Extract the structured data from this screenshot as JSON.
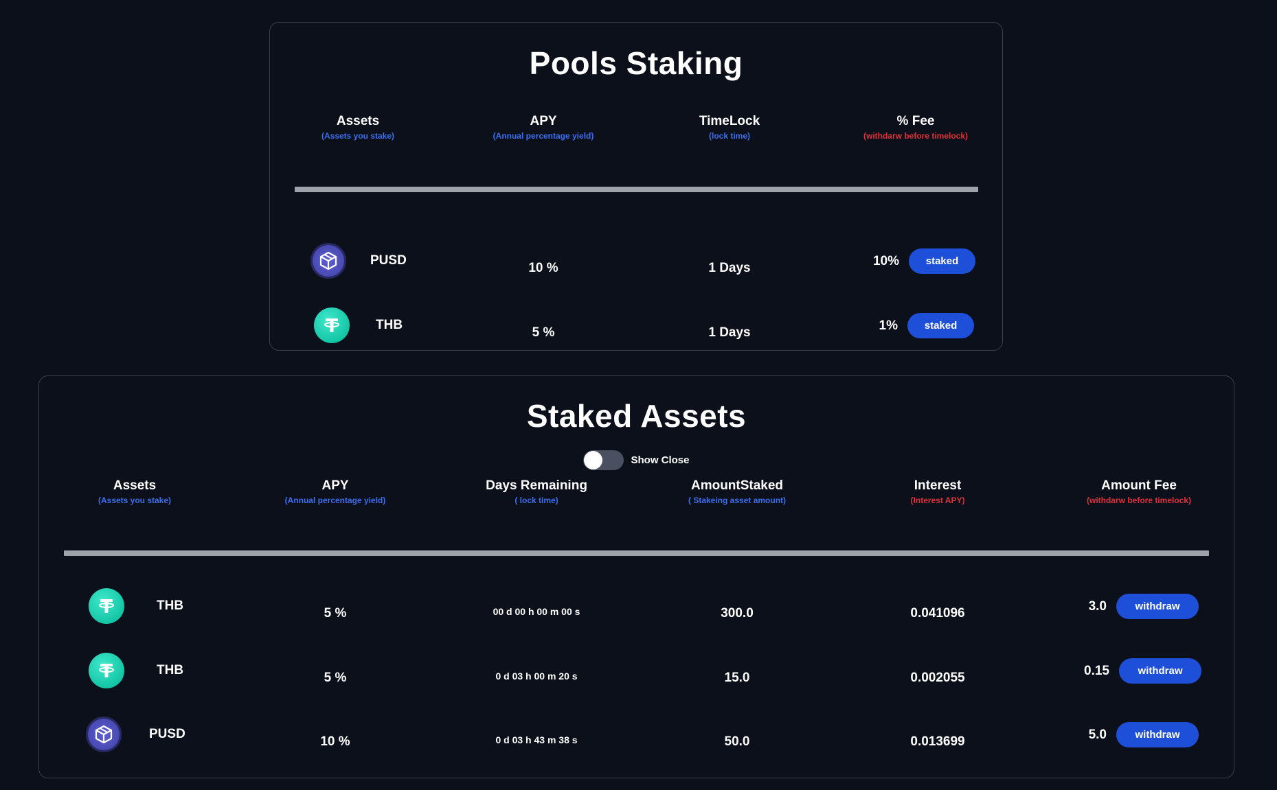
{
  "pools": {
    "title": "Pools Staking",
    "headers": [
      {
        "main": "Assets",
        "sub": "(Assets you stake)",
        "sub_color": "blue"
      },
      {
        "main": "APY",
        "sub": "(Annual percentage yield)",
        "sub_color": "blue"
      },
      {
        "main": "TimeLock",
        "sub": "(lock time)",
        "sub_color": "blue"
      },
      {
        "main": "% Fee",
        "sub": "(withdarw before timelock)",
        "sub_color": "red"
      }
    ],
    "rows": [
      {
        "asset": "PUSD",
        "icon": "pusd-cube-icon",
        "apy": "10 %",
        "timelock": "1 Days",
        "fee": "10%",
        "action": "staked"
      },
      {
        "asset": "THB",
        "icon": "tether-icon",
        "apy": "5 %",
        "timelock": "1 Days",
        "fee": "1%",
        "action": "staked"
      }
    ]
  },
  "staked": {
    "title": "Staked Assets",
    "toggle": {
      "label": "Show Close",
      "on": false
    },
    "headers": [
      {
        "main": "Assets",
        "sub": "(Assets you stake)",
        "sub_color": "blue"
      },
      {
        "main": "APY",
        "sub": "(Annual percentage yield)",
        "sub_color": "blue"
      },
      {
        "main": "Days Remaining",
        "sub": "( lock time)",
        "sub_color": "blue"
      },
      {
        "main": "AmountStaked",
        "sub": "( Stakeing asset amount)",
        "sub_color": "blue"
      },
      {
        "main": "Interest",
        "sub": "(Interest APY)",
        "sub_color": "red"
      },
      {
        "main": "Amount Fee",
        "sub": "(withdarw before timelock)",
        "sub_color": "red"
      }
    ],
    "rows": [
      {
        "asset": "THB",
        "icon": "tether-icon",
        "apy": "5 %",
        "remaining": "00 d 00 h 00 m 00 s",
        "amount": "300.0",
        "interest": "0.041096",
        "fee": "3.0",
        "action": "withdraw"
      },
      {
        "asset": "THB",
        "icon": "tether-icon",
        "apy": "5 %",
        "remaining": "0 d 03 h 00 m 20 s",
        "amount": "15.0",
        "interest": "0.002055",
        "fee": "0.15",
        "action": "withdraw"
      },
      {
        "asset": "PUSD",
        "icon": "pusd-cube-icon",
        "apy": "10 %",
        "remaining": "0 d 03 h 43 m 38 s",
        "amount": "50.0",
        "interest": "0.013699",
        "fee": "5.0",
        "action": "withdraw"
      }
    ]
  },
  "colors": {
    "background": "#0c101a",
    "button": "#1d4fd8",
    "sub_blue": "#3b6ff0",
    "sub_red": "#e0303a",
    "divider": "#9ea2ab",
    "tether": "#14c6a6",
    "pusd": "#4a4ab5"
  }
}
